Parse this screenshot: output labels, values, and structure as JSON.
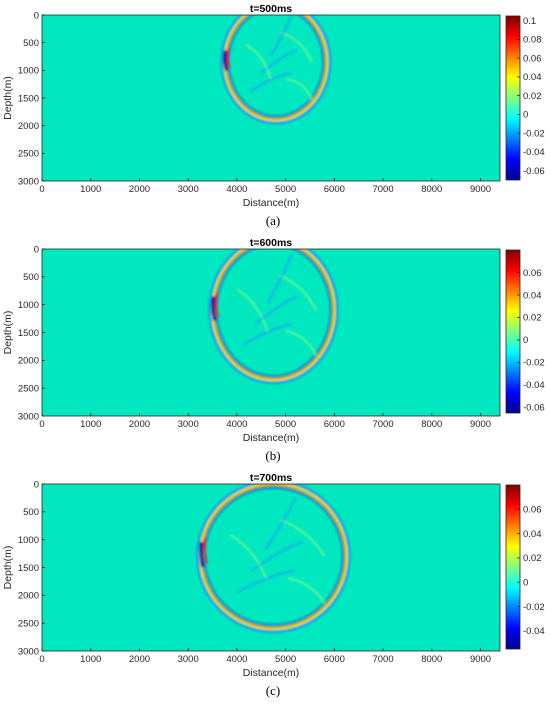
{
  "palette": {
    "background": "#00E8C0",
    "jet": [
      "#00008F",
      "#0000FF",
      "#0080FF",
      "#00FFFF",
      "#80FF80",
      "#FFFF00",
      "#FF8000",
      "#FF0000",
      "#800000"
    ]
  },
  "chart_data": [
    {
      "type": "heatmap",
      "title": "t=500ms",
      "xlabel": "Distance(m)",
      "ylabel": "Depth(m)",
      "caption": "(a)",
      "xlim": [
        0,
        9400
      ],
      "ylim": [
        3000,
        0
      ],
      "xticks": [
        "0",
        "1000",
        "2000",
        "3000",
        "4000",
        "5000",
        "6000",
        "7000",
        "8000",
        "9000"
      ],
      "yticks": [
        "0",
        "500",
        "1000",
        "1500",
        "2000",
        "2500",
        "3000"
      ],
      "colorbar": {
        "min": -0.07,
        "max": 0.105,
        "ticks": [
          "0.1",
          "0.08",
          "0.06",
          "0.04",
          "0.02",
          "0",
          "-0.02",
          "-0.04",
          "-0.06"
        ]
      },
      "wavefront": {
        "center_x": 4800,
        "center_y": 850,
        "radius_x": 1050,
        "radius_y": 1050
      }
    },
    {
      "type": "heatmap",
      "title": "t=600ms",
      "xlabel": "Distance(m)",
      "ylabel": "Depth(m)",
      "caption": "(b)",
      "xlim": [
        0,
        9400
      ],
      "ylim": [
        3000,
        0
      ],
      "xticks": [
        "0",
        "1000",
        "2000",
        "3000",
        "4000",
        "5000",
        "6000",
        "7000",
        "8000",
        "9000"
      ],
      "yticks": [
        "0",
        "500",
        "1000",
        "1500",
        "2000",
        "2500",
        "3000"
      ],
      "colorbar": {
        "min": -0.065,
        "max": 0.08,
        "ticks": [
          "0.06",
          "0.04",
          "0.02",
          "0",
          "-0.02",
          "-0.04",
          "-0.06"
        ]
      },
      "wavefront": {
        "center_x": 4750,
        "center_y": 1100,
        "radius_x": 1250,
        "radius_y": 1250
      }
    },
    {
      "type": "heatmap",
      "title": "t=700ms",
      "xlabel": "Distance(m)",
      "ylabel": "Depth(m)",
      "caption": "(c)",
      "xlim": [
        0,
        9400
      ],
      "ylim": [
        3000,
        0
      ],
      "xticks": [
        "0",
        "1000",
        "2000",
        "3000",
        "4000",
        "5000",
        "6000",
        "7000",
        "8000",
        "9000"
      ],
      "yticks": [
        "0",
        "500",
        "1000",
        "1500",
        "2000",
        "2500",
        "3000"
      ],
      "colorbar": {
        "min": -0.055,
        "max": 0.08,
        "ticks": [
          "0.06",
          "0.04",
          "0.02",
          "0",
          "-0.02",
          "-0.04"
        ]
      },
      "wavefront": {
        "center_x": 4750,
        "center_y": 1300,
        "radius_x": 1500,
        "radius_y": 1300
      }
    }
  ]
}
